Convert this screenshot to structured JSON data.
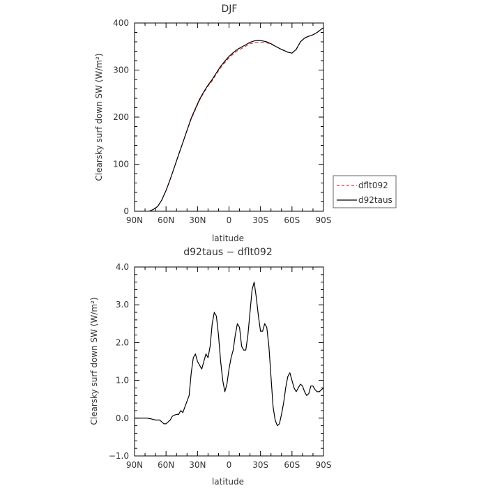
{
  "chart_data": [
    {
      "type": "line",
      "title": "DJF",
      "xlabel": "latitude",
      "ylabel": "Clearsky surf down SW (W/m²)",
      "xlim": [
        90,
        -90
      ],
      "ylim": [
        0,
        400
      ],
      "x_tick_values": [
        90,
        60,
        30,
        0,
        -30,
        -60,
        -90
      ],
      "x_tick_labels": [
        "90N",
        "60N",
        "30N",
        "0",
        "30S",
        "60S",
        "90S"
      ],
      "y_tick_values": [
        0,
        100,
        200,
        300,
        400
      ],
      "y_tick_labels": [
        "0",
        "100",
        "200",
        "300",
        "400"
      ],
      "legend_position": "right",
      "series": [
        {
          "name": "dflt092",
          "color": "#e03030",
          "dash": "dashed",
          "x": [
            76,
            72,
            68,
            64,
            60,
            56,
            52,
            48,
            44,
            40,
            36,
            32,
            28,
            24,
            20,
            16,
            12,
            8,
            4,
            0,
            -4,
            -8,
            -12,
            -16,
            -20,
            -24,
            -28,
            -32,
            -36,
            -40,
            -44,
            -48,
            -52,
            -56,
            -60,
            -64,
            -66,
            -68,
            -72,
            -76,
            -80,
            -84,
            -88,
            -90
          ],
          "y": [
            0,
            4,
            10,
            24,
            44,
            68,
            94,
            120,
            146,
            172,
            196,
            216,
            236,
            252,
            266,
            277,
            292,
            305,
            316,
            326,
            334,
            341,
            346,
            351,
            356,
            358,
            359,
            359,
            358,
            355,
            351,
            346,
            342,
            338,
            336,
            344,
            352,
            360,
            368,
            372,
            375,
            380,
            387,
            390
          ]
        },
        {
          "name": "d92taus",
          "color": "#000000",
          "dash": "solid",
          "x": [
            76,
            72,
            68,
            64,
            60,
            56,
            52,
            48,
            44,
            40,
            36,
            32,
            28,
            24,
            20,
            16,
            12,
            8,
            4,
            0,
            -4,
            -8,
            -12,
            -16,
            -20,
            -24,
            -28,
            -32,
            -36,
            -40,
            -44,
            -48,
            -52,
            -56,
            -60,
            -64,
            -66,
            -68,
            -72,
            -76,
            -80,
            -84,
            -88,
            -90
          ],
          "y": [
            0,
            4,
            10,
            24,
            44,
            68,
            94,
            120,
            146,
            172,
            198,
            218,
            238,
            254,
            268,
            280,
            294,
            308,
            319,
            329,
            337,
            344,
            349,
            354,
            359,
            362,
            363,
            362,
            360,
            356,
            351,
            346,
            342,
            338,
            336,
            344,
            352,
            360,
            368,
            372,
            375,
            380,
            387,
            390
          ]
        }
      ]
    },
    {
      "type": "line",
      "title": "d92taus − dflt092",
      "xlabel": "latitude",
      "ylabel": "Clearsky surf down SW (W/m²)",
      "xlim": [
        90,
        -90
      ],
      "ylim": [
        -1.0,
        4.0
      ],
      "x_tick_values": [
        90,
        60,
        30,
        0,
        -30,
        -60,
        -90
      ],
      "x_tick_labels": [
        "90N",
        "60N",
        "30N",
        "0",
        "30S",
        "60S",
        "90S"
      ],
      "y_tick_values": [
        -1.0,
        0.0,
        1.0,
        2.0,
        3.0,
        4.0
      ],
      "y_tick_labels": [
        "−1.0",
        "0.0",
        "1.0",
        "2.0",
        "3.0",
        "4.0"
      ],
      "series": [
        {
          "color": "#000000",
          "x": [
            90,
            80,
            78,
            74,
            70,
            66,
            64,
            62,
            60,
            58,
            56,
            54,
            52,
            50,
            48,
            46,
            44,
            42,
            40,
            38,
            36,
            34,
            32,
            30,
            28,
            26,
            24,
            22,
            20,
            18,
            16,
            14,
            12,
            10,
            8,
            6,
            4,
            2,
            0,
            -2,
            -4,
            -6,
            -8,
            -10,
            -12,
            -14,
            -16,
            -18,
            -20,
            -22,
            -24,
            -26,
            -28,
            -30,
            -32,
            -34,
            -36,
            -38,
            -40,
            -42,
            -44,
            -46,
            -48,
            -50,
            -52,
            -54,
            -56,
            -58,
            -60,
            -62,
            -64,
            -66,
            -68,
            -70,
            -72,
            -74,
            -76,
            -78,
            -80,
            -82,
            -84,
            -86,
            -88,
            -90
          ],
          "y": [
            0.0,
            0.0,
            0.0,
            -0.02,
            -0.05,
            -0.05,
            -0.1,
            -0.15,
            -0.15,
            -0.1,
            -0.05,
            0.05,
            0.08,
            0.1,
            0.1,
            0.2,
            0.15,
            0.3,
            0.45,
            0.6,
            1.2,
            1.6,
            1.7,
            1.5,
            1.4,
            1.3,
            1.5,
            1.7,
            1.6,
            1.9,
            2.5,
            2.8,
            2.7,
            2.2,
            1.5,
            1.0,
            0.7,
            0.9,
            1.3,
            1.6,
            1.8,
            2.2,
            2.5,
            2.4,
            1.9,
            1.8,
            1.8,
            2.2,
            2.8,
            3.4,
            3.6,
            3.2,
            2.7,
            2.3,
            2.3,
            2.5,
            2.4,
            1.9,
            1.1,
            0.3,
            -0.05,
            -0.2,
            -0.15,
            0.1,
            0.4,
            0.8,
            1.1,
            1.2,
            1.0,
            0.8,
            0.7,
            0.8,
            0.9,
            0.85,
            0.7,
            0.6,
            0.65,
            0.85,
            0.85,
            0.75,
            0.7,
            0.7,
            0.75,
            0.8
          ]
        }
      ]
    }
  ]
}
